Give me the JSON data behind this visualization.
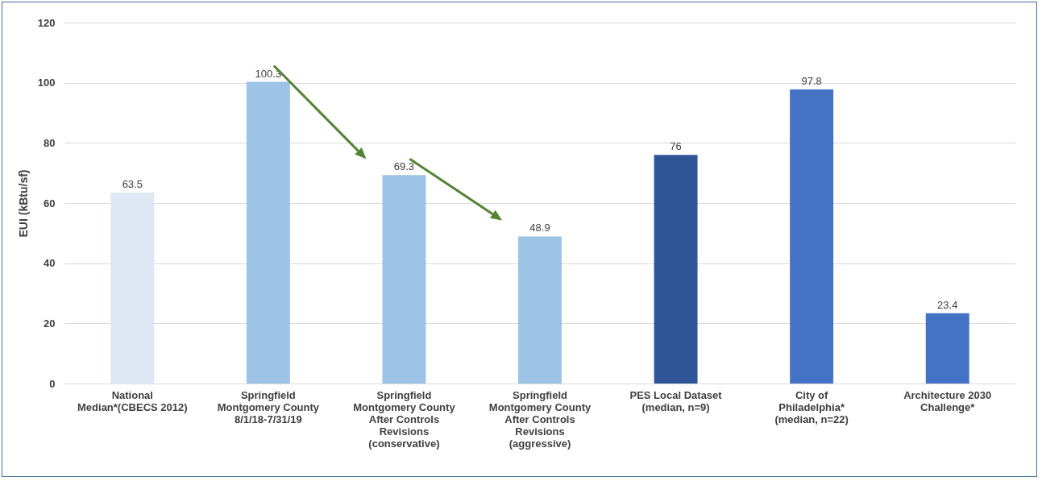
{
  "chart_data": {
    "type": "bar",
    "ylabel": "EUI (kBtu/sf)",
    "categories": [
      "National Median*(CBECS 2012)",
      "Springfield Montgomery County 8/1/18-7/31/19",
      "Springfield Montgomery County After Controls Revisions (conservative)",
      "Springfield Montgomery County After Controls Revisions (aggressive)",
      "PES Local Dataset (median, n=9)",
      "City of Philadelphia* (median, n=22)",
      "Architecture 2030 Challenge*"
    ],
    "values": [
      63.5,
      100.3,
      69.3,
      48.9,
      76,
      97.8,
      23.4
    ],
    "colors": [
      "#dde8f4",
      "#9dc3e6",
      "#9dc3e6",
      "#9dc3e6",
      "#2f5597",
      "#4472c4",
      "#4472c4"
    ],
    "ylim": [
      0,
      120
    ],
    "yticks": [
      0,
      20,
      40,
      60,
      80,
      100,
      120
    ],
    "grid": "y",
    "data_labels": true
  }
}
